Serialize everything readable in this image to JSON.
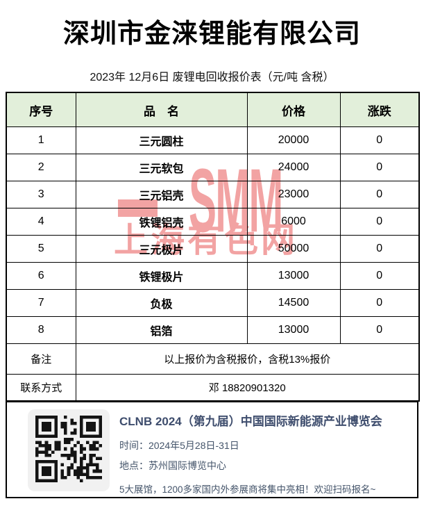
{
  "header": {
    "company": "深圳市金涞锂能有限公司",
    "subtitle": "2023年 12月6日 废锂电回收报价表（元/吨  含税）"
  },
  "price_table": {
    "columns": [
      "序号",
      "品　名",
      "价格",
      "涨跌"
    ],
    "rows": [
      {
        "no": "1",
        "name": "三元圆柱",
        "price": "20000",
        "change": "0"
      },
      {
        "no": "2",
        "name": "三元软包",
        "price": "24000",
        "change": "0"
      },
      {
        "no": "3",
        "name": "三元铝壳",
        "price": "23000",
        "change": "0"
      },
      {
        "no": "4",
        "name": "铁锂铝壳",
        "price": "6000",
        "change": "0"
      },
      {
        "no": "5",
        "name": "三元极片",
        "price": "50000",
        "change": "0"
      },
      {
        "no": "6",
        "name": "铁锂极片",
        "price": "13000",
        "change": "0"
      },
      {
        "no": "7",
        "name": "负极",
        "price": "14500",
        "change": "0"
      },
      {
        "no": "8",
        "name": "铝箔",
        "price": "13000",
        "change": "0"
      }
    ],
    "remark": {
      "label": "备注",
      "value": "以上报价为含税报价，含税13%报价"
    },
    "contact": {
      "label": "联系方式",
      "value": "邓 18820901320"
    }
  },
  "watermark": {
    "brand": "SMM",
    "site": "上海有色网",
    "color": "#f2a3a3"
  },
  "footer": {
    "title": "CLNB 2024（第九届）中国国际新能源产业博览会",
    "time": "时间：2024年5月28日-31日",
    "venue": "地点：苏州国际博览中心",
    "promo": "5大展馆，1200多家国内外参展商将集中亮相！欢迎扫码报名~",
    "text_color": "#44546a"
  },
  "colors": {
    "table_header_bg": "#e2efda",
    "table_border": "#000000",
    "watermark_pink": "#f2a3a3",
    "footer_accent": "#3e4d6d",
    "page_bg": "#ffffff"
  }
}
